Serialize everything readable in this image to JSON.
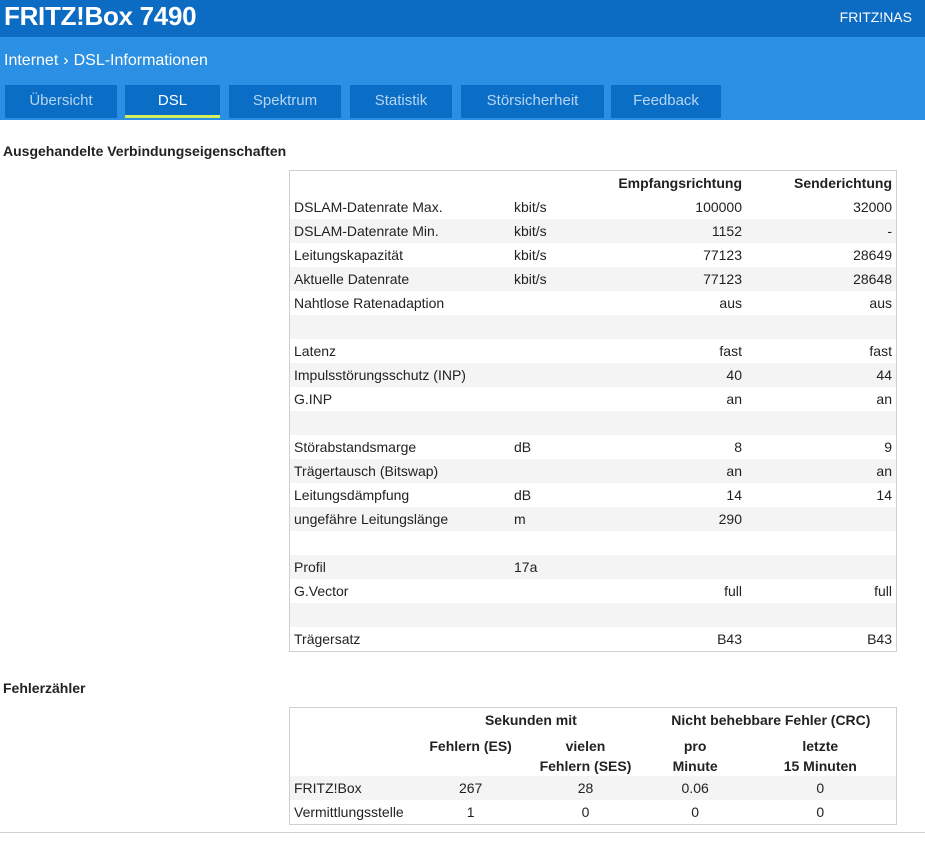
{
  "header": {
    "title": "FRITZ!Box 7490",
    "link": "FRITZ!NAS"
  },
  "breadcrumb": [
    "Internet",
    "DSL-Informationen"
  ],
  "tabs": [
    "Übersicht",
    "DSL",
    "Spektrum",
    "Statistik",
    "Störsicherheit",
    "Feedback"
  ],
  "active_tab": 1,
  "connection": {
    "title": "Ausgehandelte Verbindungseigenschaften",
    "columns": [
      "Empfangsrichtung",
      "Senderichtung"
    ],
    "rows": [
      [
        "DSLAM-Datenrate Max.",
        "kbit/s",
        100000,
        32000
      ],
      [
        "DSLAM-Datenrate Min.",
        "kbit/s",
        1152,
        "-"
      ],
      [
        "Leitungskapazität",
        "kbit/s",
        77123,
        28649
      ],
      [
        "Aktuelle Datenrate",
        "kbit/s",
        77123,
        28648
      ],
      [
        "Nahtlose Ratenadaption",
        null,
        "aus",
        "aus"
      ],
      null,
      [
        "Latenz",
        null,
        "fast",
        "fast"
      ],
      [
        "Impulsstörungsschutz (INP)",
        null,
        40,
        44
      ],
      [
        "G.INP",
        null,
        "an",
        "an"
      ],
      null,
      [
        "Störabstandsmarge",
        "dB",
        8,
        9
      ],
      [
        "Trägertausch (Bitswap)",
        null,
        "an",
        "an"
      ],
      [
        "Leitungsdämpfung",
        "dB",
        14,
        14
      ],
      [
        "ungefähre Leitungslänge",
        "m",
        290,
        null
      ],
      null,
      [
        "Profil",
        "17a",
        null,
        null
      ],
      [
        "G.Vector",
        null,
        "full",
        "full"
      ],
      null,
      [
        "Trägersatz",
        null,
        "B43",
        "B43"
      ]
    ]
  },
  "errors": {
    "title": "Fehlerzähler",
    "groups": [
      "Sekunden mit",
      "Nicht behebbare Fehler (CRC)"
    ],
    "columns": [
      "Fehlern (ES)",
      "vielen\nFehlern (SES)",
      "pro\nMinute",
      "letzte\n15 Minuten"
    ],
    "rows": [
      [
        "FRITZ!Box",
        267,
        28,
        0.06,
        0
      ],
      [
        "Vermittlungsstelle",
        1,
        0,
        0,
        0
      ]
    ]
  }
}
